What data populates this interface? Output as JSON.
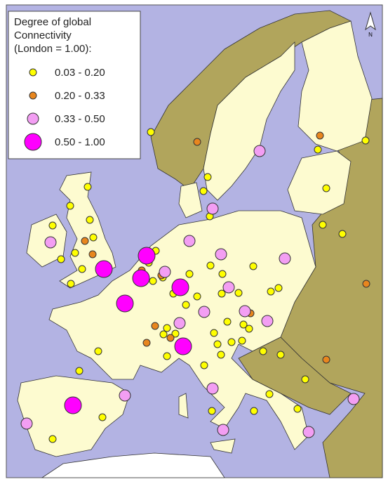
{
  "legend": {
    "title_lines": [
      "Degree of global",
      "Connectivity",
      "(London = 1.00):"
    ],
    "items": [
      {
        "label": "0.03 - 0.20",
        "color": "#ffff00"
      },
      {
        "label": "0.20 - 0.33",
        "color": "#e8861e"
      },
      {
        "label": "0.33 - 0.50",
        "color": "#f39ef3"
      },
      {
        "label": "0.50 - 1.00",
        "color": "#ff00ff"
      }
    ]
  },
  "north_arrow": "N"
}
